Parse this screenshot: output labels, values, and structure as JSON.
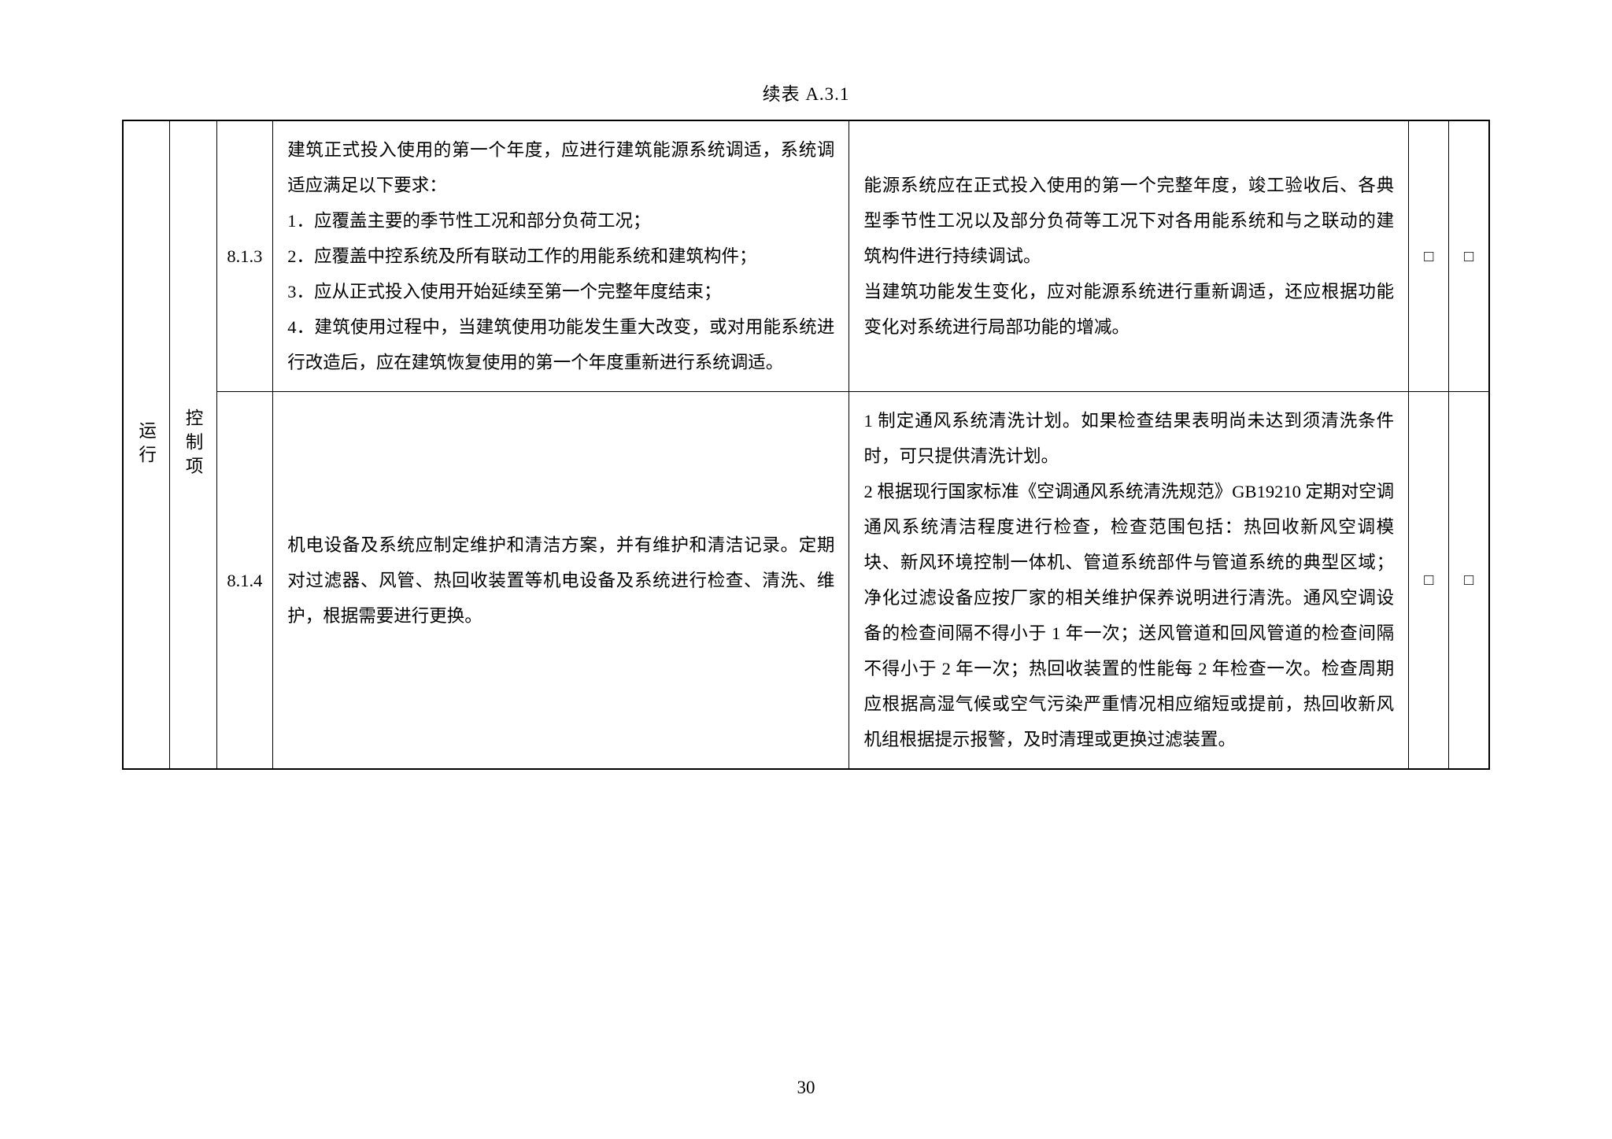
{
  "table_title": "续表 A.3.1",
  "page_number": "30",
  "row_category": "运行",
  "row_type": "控制项",
  "checkbox_glyph": "□",
  "rows": [
    {
      "id": "8.1.3",
      "requirement_intro": "建筑正式投入使用的第一个年度，应进行建筑能源系统调适，系统调适应满足以下要求：",
      "requirement_items": [
        "1．应覆盖主要的季节性工况和部分负荷工况；",
        "2．应覆盖中控系统及所有联动工作的用能系统和建筑构件；",
        "3．应从正式投入使用开始延续至第一个完整年度结束；",
        "4．建筑使用过程中，当建筑使用功能发生重大改变，或对用能系统进行改造后，应在建筑恢复使用的第一个年度重新进行系统调适。"
      ],
      "description_p1": "能源系统应在正式投入使用的第一个完整年度，竣工验收后、各典型季节性工况以及部分负荷等工况下对各用能系统和与之联动的建筑构件进行持续调试。",
      "description_p2": "当建筑功能发生变化，应对能源系统进行重新调适，还应根据功能变化对系统进行局部功能的增减。"
    },
    {
      "id": "8.1.4",
      "requirement": "机电设备及系统应制定维护和清洁方案，并有维护和清洁记录。定期对过滤器、风管、热回收装置等机电设备及系统进行检查、清洗、维护，根据需要进行更换。",
      "description": "1 制定通风系统清洗计划。如果检查结果表明尚未达到须清洗条件时，可只提供清洗计划。\n2 根据现行国家标准《空调通风系统清洗规范》GB19210 定期对空调通风系统清洁程度进行检查，检查范围包括：热回收新风空调模块、新风环境控制一体机、管道系统部件与管道系统的典型区域；净化过滤设备应按厂家的相关维护保养说明进行清洗。通风空调设备的检查间隔不得小于 1 年一次；送风管道和回风管道的检查间隔不得小于 2 年一次；热回收装置的性能每 2 年检查一次。检查周期应根据高湿气候或空气污染严重情况相应缩短或提前，热回收新风机组根据提示报警，及时清理或更换过滤装置。"
    }
  ]
}
